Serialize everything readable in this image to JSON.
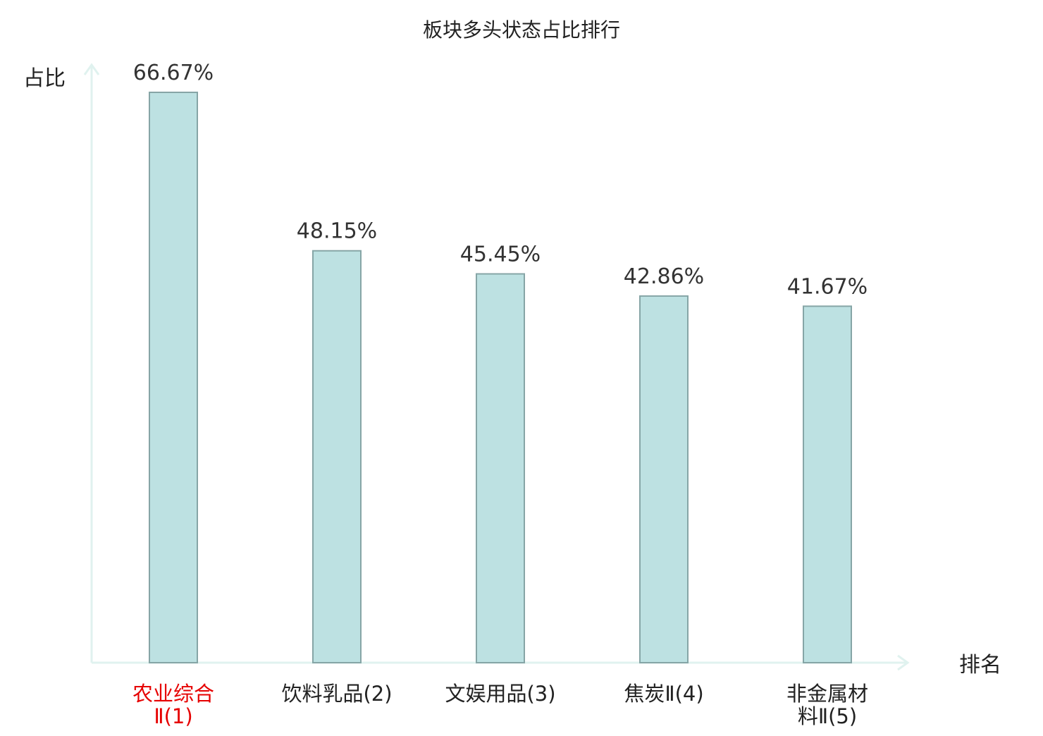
{
  "chart_data": {
    "type": "bar",
    "title": "板块多头状态占比排行",
    "xlabel": "排名",
    "ylabel": "占比",
    "categories": [
      [
        "农业综合",
        "Ⅱ(1)"
      ],
      [
        "饮料乳品(2)"
      ],
      [
        "文娱用品(3)"
      ],
      [
        "焦炭Ⅱ(4)"
      ],
      [
        "非金属材",
        "料Ⅱ(5)"
      ]
    ],
    "values": [
      66.67,
      48.15,
      45.45,
      42.86,
      41.67
    ],
    "value_labels": [
      "66.67%",
      "48.15%",
      "45.45%",
      "42.86%",
      "41.67%"
    ],
    "highlight_index": 0,
    "ylim": [
      0,
      66.67
    ],
    "grid": false,
    "colors": {
      "bar_fill": "#bde1e2",
      "bar_stroke": "#86a5a6",
      "axis": "#e0f2ef",
      "highlight_label": "#e60000",
      "label": "#222222",
      "value_label": "#333333"
    }
  }
}
